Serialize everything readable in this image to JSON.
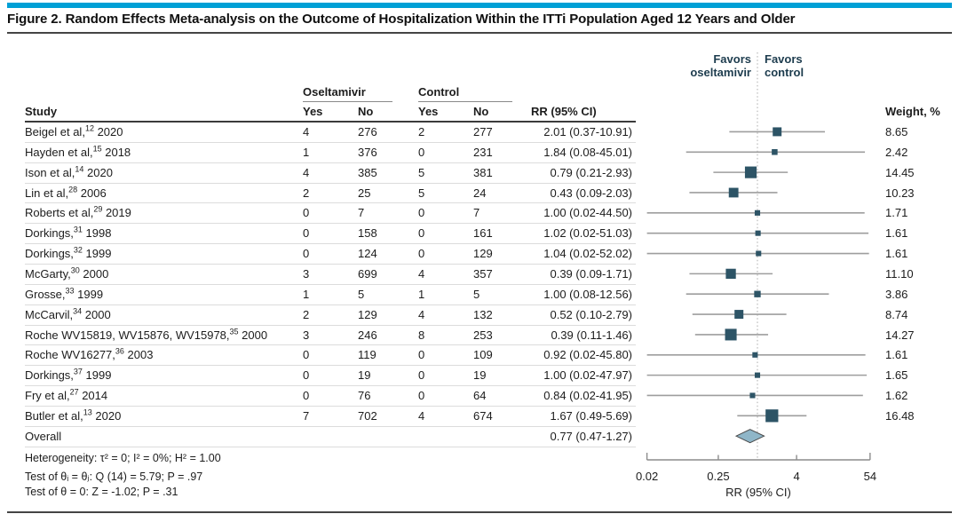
{
  "title": "Figure 2. Random Effects Meta-analysis on the Outcome of Hospitalization Within the ITTi Population Aged 12 Years and Older",
  "table": {
    "group_headers": {
      "oseltamivir": "Oseltamivir",
      "control": "Control"
    },
    "columns": {
      "study": "Study",
      "yes": "Yes",
      "no": "No",
      "rr": "RR (95% CI)",
      "weight": "Weight, %"
    }
  },
  "plot": {
    "favors_left_line1": "Favors",
    "favors_left_line2": "oseltamivir",
    "favors_right_line1": "Favors",
    "favors_right_line2": "control",
    "axis_label": "RR (95% CI)"
  },
  "footer": {
    "heterogeneity": "Heterogeneity: τ² = 0; I² = 0%; H² = 1.00",
    "test_q": "Test of θᵢ = θⱼ: Q (14) = 5.79; P = .97",
    "test_z": "Test of θ = 0: Z = -1.02; P = .31"
  },
  "colors": {
    "accent_bar": "#00a0d6",
    "marker": "#2d5466",
    "ci_line": "#9e9e9e",
    "diamond_fill": "#8fb6c8",
    "diamond_stroke": "#4a4a4a",
    "null_line": "#b3b3b3",
    "axis": "#8c8c8c",
    "favors_text": "#1d3c4e"
  },
  "chart_data": {
    "type": "forest",
    "x_scale": "log",
    "x_ticks": [
      0.02,
      0.25,
      4,
      54
    ],
    "x_tick_labels": [
      "0.02",
      "0.25",
      "4",
      "54"
    ],
    "xlabel": "RR (95% CI)",
    "null_line": 1,
    "legend_left": "Favors oseltamivir",
    "legend_right": "Favors control",
    "studies": [
      {
        "study": "Beigel et al,",
        "ref": "12",
        "year": "2020",
        "oselt_yes": 4,
        "oselt_no": 276,
        "control_yes": 2,
        "control_no": 277,
        "rr_text": "2.01 (0.37-10.91)",
        "rr": 2.01,
        "ci_low": 0.37,
        "ci_high": 10.91,
        "weight": 8.65
      },
      {
        "study": "Hayden et al,",
        "ref": "15",
        "year": "2018",
        "oselt_yes": 1,
        "oselt_no": 376,
        "control_yes": 0,
        "control_no": 231,
        "rr_text": "1.84 (0.08-45.01)",
        "rr": 1.84,
        "ci_low": 0.08,
        "ci_high": 45.01,
        "weight": 2.42
      },
      {
        "study": "Ison et al,",
        "ref": "14",
        "year": "2020",
        "oselt_yes": 4,
        "oselt_no": 385,
        "control_yes": 5,
        "control_no": 381,
        "rr_text": "0.79 (0.21-2.93)",
        "rr": 0.79,
        "ci_low": 0.21,
        "ci_high": 2.93,
        "weight": 14.45
      },
      {
        "study": "Lin et al,",
        "ref": "28",
        "year": "2006",
        "oselt_yes": 2,
        "oselt_no": 25,
        "control_yes": 5,
        "control_no": 24,
        "rr_text": "0.43 (0.09-2.03)",
        "rr": 0.43,
        "ci_low": 0.09,
        "ci_high": 2.03,
        "weight": 10.23
      },
      {
        "study": "Roberts et al,",
        "ref": "29",
        "year": "2019",
        "oselt_yes": 0,
        "oselt_no": 7,
        "control_yes": 0,
        "control_no": 7,
        "rr_text": "1.00 (0.02-44.50)",
        "rr": 1.0,
        "ci_low": 0.02,
        "ci_high": 44.5,
        "weight": 1.71
      },
      {
        "study": "Dorkings,",
        "ref": "31",
        "year": "1998",
        "oselt_yes": 0,
        "oselt_no": 158,
        "control_yes": 0,
        "control_no": 161,
        "rr_text": "1.02 (0.02-51.03)",
        "rr": 1.02,
        "ci_low": 0.02,
        "ci_high": 51.03,
        "weight": 1.61
      },
      {
        "study": "Dorkings,",
        "ref": "32",
        "year": "1999",
        "oselt_yes": 0,
        "oselt_no": 124,
        "control_yes": 0,
        "control_no": 129,
        "rr_text": "1.04 (0.02-52.02)",
        "rr": 1.04,
        "ci_low": 0.02,
        "ci_high": 52.02,
        "weight": 1.61
      },
      {
        "study": "McGarty,",
        "ref": "30",
        "year": "2000",
        "oselt_yes": 3,
        "oselt_no": 699,
        "control_yes": 4,
        "control_no": 357,
        "rr_text": "0.39 (0.09-1.71)",
        "rr": 0.39,
        "ci_low": 0.09,
        "ci_high": 1.71,
        "weight": 11.1
      },
      {
        "study": "Grosse,",
        "ref": "33",
        "year": "1999",
        "oselt_yes": 1,
        "oselt_no": 5,
        "control_yes": 1,
        "control_no": 5,
        "rr_text": "1.00 (0.08-12.56)",
        "rr": 1.0,
        "ci_low": 0.08,
        "ci_high": 12.56,
        "weight": 3.86
      },
      {
        "study": "McCarvil,",
        "ref": "34",
        "year": "2000",
        "oselt_yes": 2,
        "oselt_no": 129,
        "control_yes": 4,
        "control_no": 132,
        "rr_text": "0.52 (0.10-2.79)",
        "rr": 0.52,
        "ci_low": 0.1,
        "ci_high": 2.79,
        "weight": 8.74
      },
      {
        "study": "Roche WV15819, WV15876, WV15978,",
        "ref": "35",
        "year": "2000",
        "oselt_yes": 3,
        "oselt_no": 246,
        "control_yes": 8,
        "control_no": 253,
        "rr_text": "0.39 (0.11-1.46)",
        "rr": 0.39,
        "ci_low": 0.11,
        "ci_high": 1.46,
        "weight": 14.27
      },
      {
        "study": "Roche WV16277,",
        "ref": "36",
        "year": "2003",
        "oselt_yes": 0,
        "oselt_no": 119,
        "control_yes": 0,
        "control_no": 109,
        "rr_text": "0.92 (0.02-45.80)",
        "rr": 0.92,
        "ci_low": 0.02,
        "ci_high": 45.8,
        "weight": 1.61
      },
      {
        "study": "Dorkings,",
        "ref": "37",
        "year": "1999",
        "oselt_yes": 0,
        "oselt_no": 19,
        "control_yes": 0,
        "control_no": 19,
        "rr_text": "1.00 (0.02-47.97)",
        "rr": 1.0,
        "ci_low": 0.02,
        "ci_high": 47.97,
        "weight": 1.65
      },
      {
        "study": "Fry et al,",
        "ref": "27",
        "year": "2014",
        "oselt_yes": 0,
        "oselt_no": 76,
        "control_yes": 0,
        "control_no": 64,
        "rr_text": "0.84 (0.02-41.95)",
        "rr": 0.84,
        "ci_low": 0.02,
        "ci_high": 41.95,
        "weight": 1.62
      },
      {
        "study": "Butler et al,",
        "ref": "13",
        "year": "2020",
        "oselt_yes": 7,
        "oselt_no": 702,
        "control_yes": 4,
        "control_no": 674,
        "rr_text": "1.67 (0.49-5.69)",
        "rr": 1.67,
        "ci_low": 0.49,
        "ci_high": 5.69,
        "weight": 16.48
      }
    ],
    "overall": {
      "label": "Overall",
      "rr_text": "0.77 (0.47-1.27)",
      "rr": 0.77,
      "ci_low": 0.47,
      "ci_high": 1.27
    }
  }
}
